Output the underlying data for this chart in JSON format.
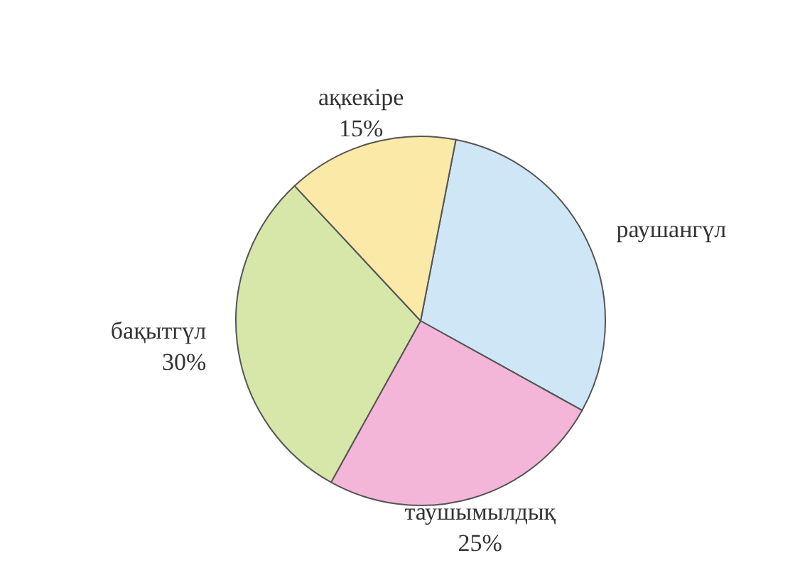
{
  "chart_data": {
    "type": "pie",
    "categories": [
      "раушангүл",
      "таушымылдық",
      "бақытгүл",
      "ақкекіре"
    ],
    "values": [
      30,
      25,
      30,
      15
    ],
    "colors": [
      "#cfe6f7",
      "#f3b5d8",
      "#d7e6a9",
      "#fbe9a7"
    ],
    "value_labels": [
      null,
      "25%",
      "30%",
      "15%"
    ]
  }
}
